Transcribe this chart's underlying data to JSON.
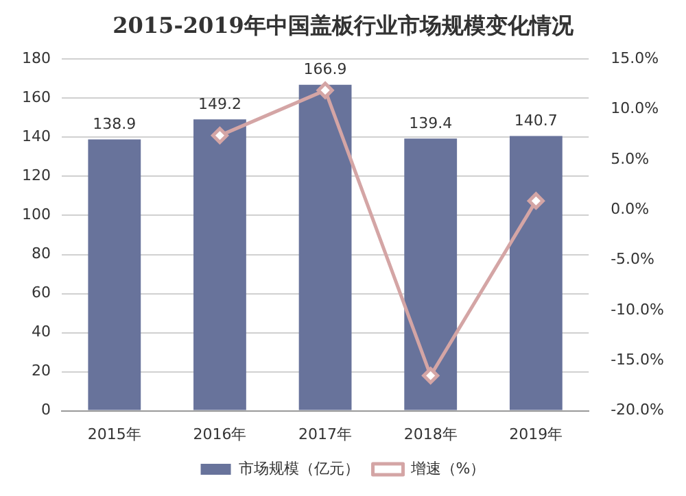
{
  "chart_data": {
    "type": "bar",
    "title": "2015-2019年中国盖板行业市场规模变化情况",
    "categories": [
      "2015年",
      "2016年",
      "2017年",
      "2018年",
      "2019年"
    ],
    "series": [
      {
        "name": "市场规模（亿元）",
        "color": "#68739b",
        "values": [
          138.9,
          149.2,
          166.9,
          139.4,
          140.7
        ],
        "value_labels": [
          "138.9",
          "149.2",
          "166.9",
          "139.4",
          "140.7"
        ]
      },
      {
        "name": "增速（%）",
        "type": "line",
        "axis": "y2",
        "color": "#d4a5a5",
        "marker": "diamond",
        "values": [
          null,
          7.4,
          11.9,
          -16.5,
          0.9
        ]
      }
    ],
    "ylim": [
      0,
      180
    ],
    "yticks": [
      0,
      20,
      40,
      60,
      80,
      100,
      120,
      140,
      160,
      180
    ],
    "y2lim": [
      -20,
      15
    ],
    "y2ticks": [
      {
        "value": -20,
        "label": "-20.0%"
      },
      {
        "value": -15,
        "label": "-15.0%"
      },
      {
        "value": -10,
        "label": "-10.0%"
      },
      {
        "value": -5,
        "label": "-5.0%"
      },
      {
        "value": 0,
        "label": "0.0%"
      },
      {
        "value": 5,
        "label": "5.0%"
      },
      {
        "value": 10,
        "label": "10.0%"
      },
      {
        "value": 15,
        "label": "15.0%"
      }
    ],
    "grid": "y",
    "legend": "bottom"
  }
}
